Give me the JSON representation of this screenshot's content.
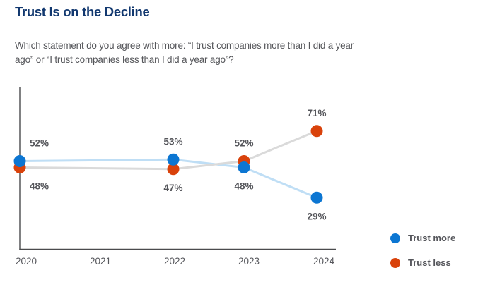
{
  "header": {
    "title": "Trust Is on the Decline",
    "subtitle": "Which statement do you agree with more: “I trust companies more than I did a year\nago” or “I trust companies less than I did a year ago”?"
  },
  "colors": {
    "title": "#12386f",
    "body_text": "#56575b",
    "axis": "#4a4b4d",
    "label_text": "#55565b",
    "trust_more": "#0c76d2",
    "trust_less": "#d9420b",
    "trust_more_line": "#bfdef5",
    "trust_less_line": "#dadada"
  },
  "legend": [
    {
      "label": "Trust more",
      "color": "#0c76d2"
    },
    {
      "label": "Trust less",
      "color": "#d9420b"
    }
  ],
  "chart_data": {
    "type": "line",
    "title": "Trust Is on the Decline",
    "x": [
      2020,
      2022,
      2023,
      2024
    ],
    "x_axis_ticks": [
      "2020",
      "2021",
      "2022",
      "2023",
      "2024"
    ],
    "series": [
      {
        "name": "Trust more",
        "color": "#0c76d2",
        "line_color": "#bfdef5",
        "values": [
          52,
          53,
          48,
          29
        ],
        "labels": [
          "52%",
          "53%",
          "48%",
          "29%"
        ]
      },
      {
        "name": "Trust less",
        "color": "#d9420b",
        "line_color": "#dadada",
        "values": [
          48,
          47,
          52,
          71
        ],
        "labels": [
          "48%",
          "47%",
          "52%",
          "71%"
        ]
      }
    ],
    "xlabel": "",
    "ylabel": "",
    "ylim": [
      0,
      100
    ],
    "grid": false,
    "legend_position": "bottom-right",
    "data_label_format": "percent"
  }
}
